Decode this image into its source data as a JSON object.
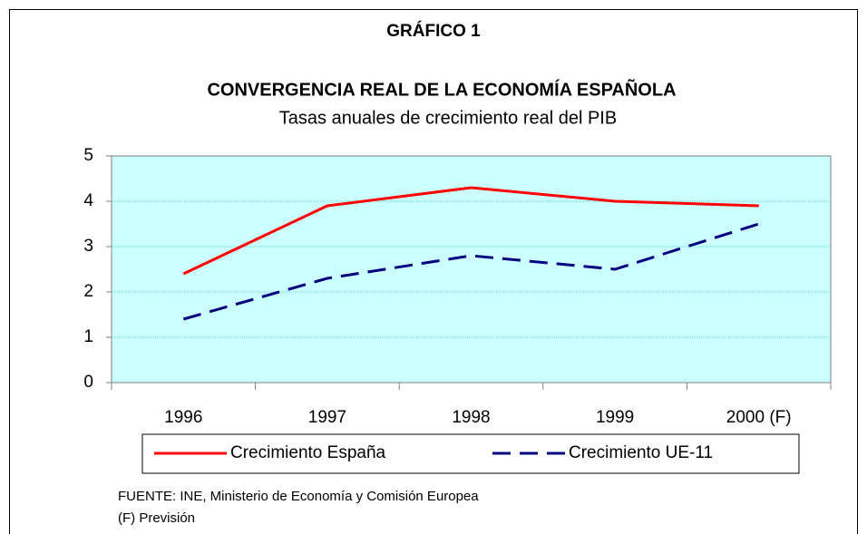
{
  "chart_data": {
    "type": "line",
    "header": "GRÁFICO 1",
    "title": "CONVERGENCIA REAL DE LA ECONOMÍA ESPAÑOLA",
    "subtitle": "Tasas anuales de crecimiento real del PIB",
    "categories": [
      "1996",
      "1997",
      "1998",
      "1999",
      "2000 (F)"
    ],
    "series": [
      {
        "name": "Crecimiento España",
        "color": "#ff0000",
        "dash": false,
        "values": [
          2.4,
          3.9,
          4.3,
          4.0,
          3.9
        ]
      },
      {
        "name": "Crecimiento UE-11",
        "color": "#000080",
        "dash": true,
        "values": [
          1.4,
          2.3,
          2.8,
          2.5,
          3.5
        ]
      }
    ],
    "ylim": [
      0,
      5
    ],
    "yticks": [
      0,
      1,
      2,
      3,
      4,
      5
    ],
    "grid": true,
    "source": "FUENTE: INE, Ministerio de Economía y Comisión Europea",
    "note": "(F) Previsión"
  }
}
